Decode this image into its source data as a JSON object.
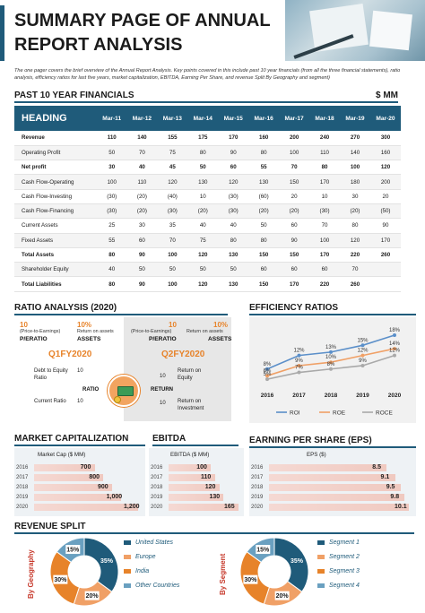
{
  "header": {
    "title": "Summary page of annual report analysis",
    "intro": "The one pager covers the brief overview of the Annual Report Analysis. Key points covered in this include past 10 year financials (from all the three financial statements), ratio analysis, efficiency ratios for last five years, market capitalization, EBITDA, Earning Per Share, and revenue Split By Geography and segment)"
  },
  "financials": {
    "title": "PAST 10 YEAR FINANCIALS",
    "unit": "$ MM",
    "heading": "HEADING",
    "columns": [
      "Mar-11",
      "Mar-12",
      "Mar-13",
      "Mar-14",
      "Mar-15",
      "Mar-16",
      "Mar-17",
      "Mar-18",
      "Mar-19",
      "Mar-20"
    ],
    "rows": [
      {
        "label": "Revenue",
        "bold": true,
        "values": [
          "110",
          "140",
          "155",
          "175",
          "170",
          "160",
          "200",
          "240",
          "270",
          "300"
        ]
      },
      {
        "label": "Operating Profit",
        "bold": false,
        "values": [
          "50",
          "70",
          "75",
          "80",
          "90",
          "80",
          "100",
          "110",
          "140",
          "160"
        ]
      },
      {
        "label": "Net profit",
        "bold": true,
        "values": [
          "30",
          "40",
          "45",
          "50",
          "60",
          "55",
          "70",
          "80",
          "100",
          "120"
        ]
      },
      {
        "label": "Cash Flow-Operating",
        "bold": false,
        "values": [
          "100",
          "110",
          "120",
          "130",
          "120",
          "130",
          "150",
          "170",
          "180",
          "200"
        ]
      },
      {
        "label": "Cash Flow-Investing",
        "bold": false,
        "values": [
          "(30)",
          "(20)",
          "(40)",
          "10",
          "(30)",
          "(60)",
          "20",
          "10",
          "30",
          "20"
        ]
      },
      {
        "label": "Cash Flow-Financing",
        "bold": false,
        "values": [
          "(30)",
          "(20)",
          "(30)",
          "(20)",
          "(30)",
          "(20)",
          "(20)",
          "(30)",
          "(20)",
          "(50)"
        ]
      },
      {
        "label": "Current Assets",
        "bold": false,
        "values": [
          "25",
          "30",
          "35",
          "40",
          "40",
          "50",
          "60",
          "70",
          "80",
          "90"
        ]
      },
      {
        "label": "Fixed Assets",
        "bold": false,
        "values": [
          "55",
          "60",
          "70",
          "75",
          "80",
          "80",
          "90",
          "100",
          "120",
          "170"
        ]
      },
      {
        "label": "Total Assets",
        "bold": true,
        "values": [
          "80",
          "90",
          "100",
          "120",
          "130",
          "150",
          "150",
          "170",
          "220",
          "260"
        ]
      },
      {
        "label": "Shareholder Equity",
        "bold": false,
        "values": [
          "40",
          "50",
          "50",
          "50",
          "50",
          "60",
          "60",
          "60",
          "70",
          ""
        ]
      },
      {
        "label": "Total Liabilities",
        "bold": true,
        "values": [
          "80",
          "90",
          "100",
          "120",
          "130",
          "150",
          "170",
          "220",
          "260",
          ""
        ]
      }
    ]
  },
  "ratio": {
    "title": "RATIO ANALYSIS (2020)",
    "q1": {
      "pe_value": "10",
      "pe_note": "(Price-to-Earnings)",
      "pe_label": "P/ERATIO",
      "roa_value": "10%",
      "roa_note": "Return on assets",
      "roa_label": "ASSETS",
      "quarter": "Q1FY2020",
      "row1_label": "Debt to Equity Ratio",
      "row1_value": "10",
      "row2_label": "Current Ratio",
      "row2_value": "10",
      "center_word": "RATIO"
    },
    "q2": {
      "pe_value": "10",
      "pe_note": "(Price-to-Earnings)",
      "pe_label": "P/ERATIO",
      "roa_value": "10%",
      "roa_note": "Return on assets",
      "roa_label": "ASSETS",
      "quarter": "Q2FY2020",
      "row1_label": "Return on Equity",
      "row1_value": "10",
      "row2_label": "Return on Investment",
      "row2_value": "10",
      "center_word": "RETURN"
    },
    "colors": {
      "accent": "#e7832a",
      "panel": "#e7e7e7"
    }
  },
  "chart_data": [
    {
      "type": "line",
      "title": "EFFICIENCY RATIOS",
      "x": [
        "2016",
        "2017",
        "2018",
        "2019",
        "2020"
      ],
      "series": [
        {
          "name": "ROI",
          "values": [
            8,
            12,
            13,
            15,
            18
          ],
          "labels": [
            "8%",
            "12%",
            "13%",
            "15%",
            "18%"
          ],
          "color": "#5b8fc9"
        },
        {
          "name": "ROE",
          "values": [
            6,
            9,
            10,
            12,
            14
          ],
          "labels": [
            "6%",
            "9%",
            "10%",
            "12%",
            "14%"
          ],
          "color": "#f0a066"
        },
        {
          "name": "ROCE",
          "values": [
            5,
            7,
            8,
            9,
            12
          ],
          "labels": [
            "5%",
            "7%",
            "8%",
            "9%",
            "12%"
          ],
          "color": "#a9a9a9"
        }
      ],
      "ylim": [
        0,
        20
      ],
      "legend": "bottom"
    },
    {
      "type": "bar",
      "title": "MARKET CAPITALIZATION",
      "series_label": "Market Cap ($ MM)",
      "categories": [
        "2016",
        "2017",
        "2018",
        "2019",
        "2020"
      ],
      "values": [
        700,
        800,
        900,
        1000,
        1200
      ],
      "labels": [
        "700",
        "800",
        "900",
        "1,000",
        "1,200"
      ],
      "xlim": [
        0,
        1200
      ]
    },
    {
      "type": "bar",
      "title": "EBITDA",
      "series_label": "EBITDA ($ MM)",
      "categories": [
        "2016",
        "2017",
        "2018",
        "2019",
        "2020"
      ],
      "values": [
        100,
        110,
        120,
        130,
        165
      ],
      "labels": [
        "100",
        "110",
        "120",
        "130",
        "165"
      ],
      "xlim": [
        0,
        165
      ]
    },
    {
      "type": "bar",
      "title": "EARNING PER SHARE (EPS)",
      "series_label": "EPS ($)",
      "categories": [
        "2016",
        "2017",
        "2018",
        "2019",
        "2020"
      ],
      "values": [
        8.5,
        9.1,
        9.5,
        9.8,
        10.1
      ],
      "labels": [
        "8.5",
        "9.1",
        "9.5",
        "9.8",
        "10.1"
      ],
      "xlim": [
        0,
        10.1
      ]
    },
    {
      "type": "pie",
      "title": "REVENUE SPLIT",
      "series_label": "By Geography",
      "categories": [
        "United States",
        "Europe",
        "India",
        "Other Countries"
      ],
      "values": [
        35,
        20,
        30,
        15
      ],
      "labels": [
        "35%",
        "20%",
        "30%",
        "15%"
      ],
      "colors": [
        "#1f5b7a",
        "#f0a066",
        "#e7832a",
        "#6aa0c0"
      ]
    },
    {
      "type": "pie",
      "title": "",
      "series_label": "By Segment",
      "categories": [
        "Segment 1",
        "Segment 2",
        "Segment 3",
        "Segment 4"
      ],
      "values": [
        35,
        20,
        30,
        15
      ],
      "labels": [
        "35%",
        "20%",
        "30%",
        "15%"
      ],
      "colors": [
        "#1f5b7a",
        "#f0a066",
        "#e7832a",
        "#6aa0c0"
      ]
    }
  ],
  "colors": {
    "brand": "#1f5b7a",
    "accent": "#e7832a",
    "bar": "#f0c9c0"
  }
}
